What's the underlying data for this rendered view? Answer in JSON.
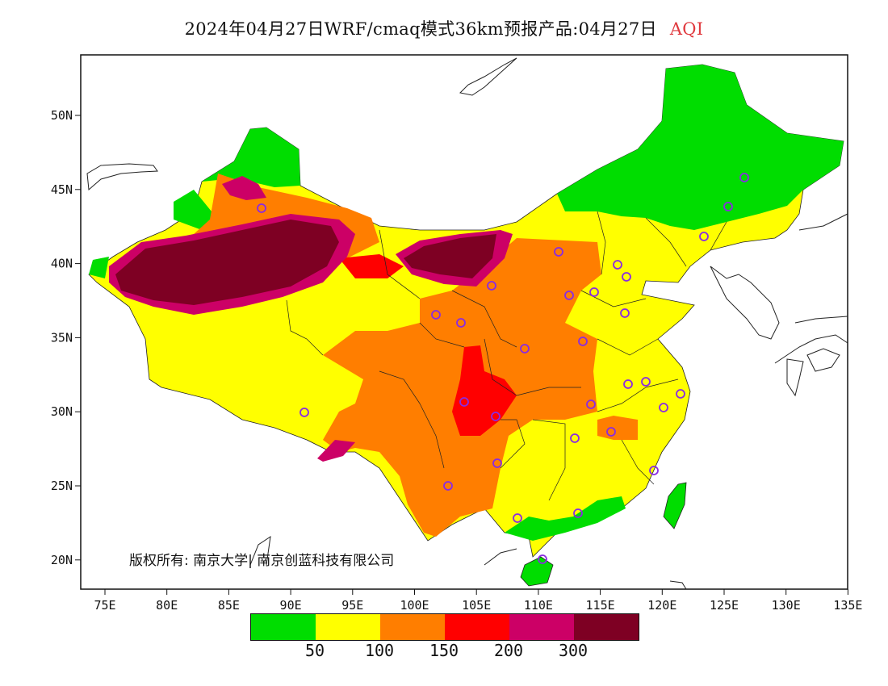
{
  "title": {
    "main": "2024年04月27日WRF/cmaq模式36km预报产品:04月27日",
    "product": "AQI"
  },
  "axes": {
    "x_ticks": [
      "75E",
      "80E",
      "85E",
      "90E",
      "95E",
      "100E",
      "105E",
      "110E",
      "115E",
      "120E",
      "125E",
      "130E",
      "135E"
    ],
    "y_ticks": [
      "50N",
      "45N",
      "40N",
      "35N",
      "30N",
      "25N",
      "20N"
    ]
  },
  "copyright": "版权所有: 南京大学| 南京创蓝科技有限公司",
  "legend": {
    "colors": [
      "#00dd00",
      "#ffff00",
      "#ff7e00",
      "#ff0000",
      "#cc0066",
      "#7e0023"
    ],
    "labels": [
      "50",
      "100",
      "150",
      "200",
      "300"
    ]
  },
  "colors": {
    "good": "#00dd00",
    "moderate": "#ffff00",
    "usg": "#ff7e00",
    "unhealthy": "#ff0000",
    "very_unhealthy": "#cc0066",
    "hazardous": "#7e0023",
    "station_marker": "#8a2be2"
  },
  "stations_count": "many"
}
